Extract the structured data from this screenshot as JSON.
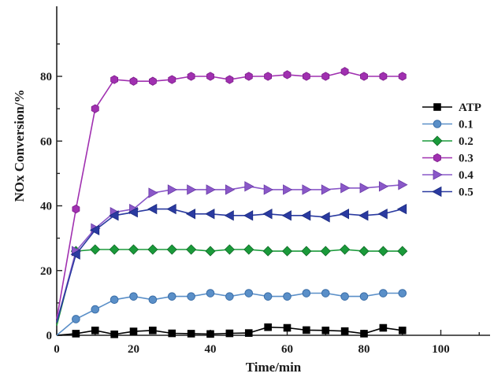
{
  "chart_data": {
    "type": "line",
    "xlabel": "Time/min",
    "ylabel": "NOx Conversion/%",
    "xlim": [
      0,
      110
    ],
    "ylim": [
      0,
      90
    ],
    "xticks": [
      0,
      20,
      40,
      60,
      80,
      100
    ],
    "yticks": [
      0,
      20,
      40,
      60,
      80
    ],
    "legend_position": "right",
    "series": [
      {
        "name": "ATP",
        "color": "#000000",
        "marker": "square",
        "x": [
          0,
          5,
          10,
          15,
          20,
          25,
          30,
          35,
          40,
          45,
          50,
          55,
          60,
          65,
          70,
          75,
          80,
          85,
          90
        ],
        "values": [
          0,
          0.5,
          1.5,
          0.3,
          1.2,
          1.5,
          0.6,
          0.5,
          0.4,
          0.6,
          0.7,
          2.5,
          2.3,
          1.6,
          1.5,
          1.3,
          0.5,
          2.3,
          1.5
        ]
      },
      {
        "name": "0.1",
        "color": "#5a8fc8",
        "marker": "circle",
        "x": [
          0,
          5,
          10,
          15,
          20,
          25,
          30,
          35,
          40,
          45,
          50,
          55,
          60,
          65,
          70,
          75,
          80,
          85,
          90
        ],
        "values": [
          0,
          5,
          8,
          11,
          12,
          11,
          12,
          12,
          13,
          12,
          13,
          12,
          12,
          13,
          13,
          12,
          12,
          13,
          13
        ]
      },
      {
        "name": "0.2",
        "color": "#1a9a3a",
        "marker": "diamond",
        "x": [
          0,
          5,
          10,
          15,
          20,
          25,
          30,
          35,
          40,
          45,
          50,
          55,
          60,
          65,
          70,
          75,
          80,
          85,
          90
        ],
        "values": [
          3,
          26,
          26.5,
          26.5,
          26.5,
          26.5,
          26.5,
          26.5,
          26,
          26.5,
          26.5,
          26,
          26,
          26,
          26,
          26.5,
          26,
          26,
          26
        ]
      },
      {
        "name": "0.3",
        "color": "#a030b0",
        "marker": "hexagon",
        "x": [
          0,
          5,
          10,
          15,
          20,
          25,
          30,
          35,
          40,
          45,
          50,
          55,
          60,
          65,
          70,
          75,
          80,
          85,
          90
        ],
        "values": [
          5,
          39,
          70,
          79,
          78.5,
          78.5,
          79,
          80,
          80,
          79,
          80,
          80,
          80.5,
          80,
          80,
          81.5,
          80,
          80,
          80
        ]
      },
      {
        "name": "0.4",
        "color": "#8a58c8",
        "marker": "triangle-right",
        "x": [
          0,
          5,
          10,
          15,
          20,
          25,
          30,
          35,
          40,
          45,
          50,
          55,
          60,
          65,
          70,
          75,
          80,
          85,
          90
        ],
        "values": [
          4,
          26,
          33,
          38,
          39,
          44,
          45,
          45,
          45,
          45,
          46,
          45,
          45,
          45,
          45,
          45.5,
          45.5,
          46,
          46.5
        ]
      },
      {
        "name": "0.5",
        "color": "#2a3aa0",
        "marker": "triangle-left",
        "x": [
          0,
          5,
          10,
          15,
          20,
          25,
          30,
          35,
          40,
          45,
          50,
          55,
          60,
          65,
          70,
          75,
          80,
          85,
          90
        ],
        "values": [
          4,
          25,
          32.5,
          37,
          38,
          39,
          39,
          37.5,
          37.5,
          37,
          37,
          37.5,
          37,
          37,
          36.5,
          37.5,
          37,
          37.5,
          39
        ]
      }
    ]
  }
}
